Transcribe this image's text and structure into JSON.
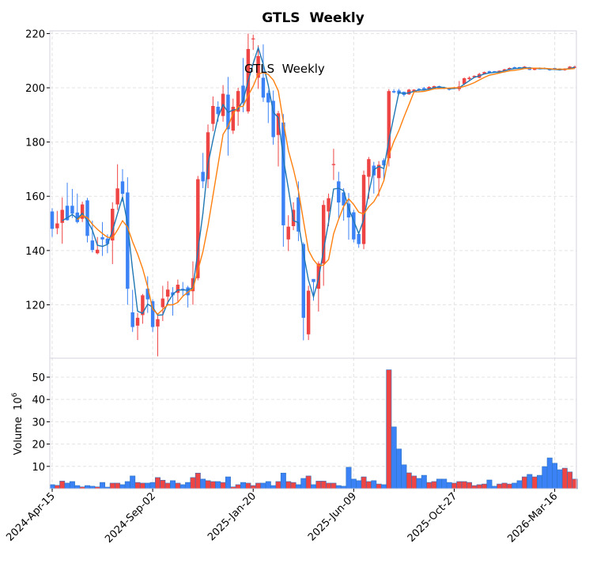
{
  "chart_data": {
    "type": "candlestick",
    "title": "GTLS  Weekly",
    "annotation": "GTLS  Weekly",
    "ylabel_volume": "Volume  10",
    "ylabel_volume_exp": "6",
    "ylim": [
      100.3,
      221
    ],
    "volume_ylim": [
      0,
      58.5
    ],
    "y_ticks": [
      120,
      140,
      160,
      180,
      200,
      220
    ],
    "volume_ticks": [
      10,
      20,
      30,
      40,
      50
    ],
    "x_ticks": [
      {
        "index": 0,
        "label": "2024-Apr-15"
      },
      {
        "index": 20,
        "label": "2024-Sep-02"
      },
      {
        "index": 40,
        "label": "2025-Jan-20"
      },
      {
        "index": 60,
        "label": "2025-Jun-09"
      },
      {
        "index": 80,
        "label": "2025-Oct-27"
      },
      {
        "index": 100,
        "label": "2026-Mar-16"
      }
    ],
    "ma_windows": [
      3,
      6
    ],
    "colors": {
      "up": "#ef4444",
      "down": "#3b82f6",
      "ma_short": "#1f77b4",
      "ma_long": "#ff7f0e",
      "grid": "#e3e3e3",
      "frame": "#d3d3de"
    },
    "ohlc": [
      [
        154.4,
        155.6,
        145,
        148
      ],
      [
        148.2,
        154.6,
        146,
        150
      ],
      [
        150.2,
        159.6,
        142.5,
        155
      ],
      [
        156.5,
        165,
        151,
        151.2
      ],
      [
        156.5,
        162.7,
        152,
        153.6
      ],
      [
        154,
        161,
        150,
        150.5
      ],
      [
        151.7,
        158,
        150.5,
        157
      ],
      [
        158.5,
        159.4,
        143,
        145.4
      ],
      [
        143.7,
        151,
        139.3,
        140.2
      ],
      [
        139,
        145,
        138.6,
        140.3
      ],
      [
        144.9,
        150.5,
        138,
        144.1
      ],
      [
        144.4,
        146,
        139,
        142.4
      ],
      [
        143.7,
        157.8,
        135,
        155.4
      ],
      [
        157,
        171.8,
        155,
        162.9
      ],
      [
        165.5,
        170,
        158,
        160.9
      ],
      [
        161.4,
        167,
        120,
        125.9
      ],
      [
        117.2,
        125.5,
        110,
        111.8
      ],
      [
        112.3,
        117,
        107,
        115.2
      ],
      [
        116.2,
        124,
        113,
        123.5
      ],
      [
        125.9,
        130.5,
        117,
        122
      ],
      [
        121.3,
        122,
        110,
        111.8
      ],
      [
        112,
        116,
        101,
        114.7
      ],
      [
        119.1,
        127,
        114,
        122.3
      ],
      [
        123,
        128.7,
        120,
        125.6
      ],
      [
        124.6,
        126.5,
        116,
        123.5
      ],
      [
        124.4,
        129.3,
        121,
        127.4
      ],
      [
        125.9,
        128.4,
        123,
        125.4
      ],
      [
        126.4,
        127,
        119,
        123.5
      ],
      [
        125,
        136,
        120,
        129.8
      ],
      [
        129.8,
        167.5,
        129,
        166.3
      ],
      [
        169,
        176,
        163,
        165.5
      ],
      [
        166.3,
        186.5,
        163,
        183.6
      ],
      [
        186.7,
        196.8,
        184,
        193.3
      ],
      [
        193,
        195,
        187.5,
        190.3
      ],
      [
        189.6,
        201,
        187.5,
        197.8
      ],
      [
        197.5,
        204,
        175,
        184.7
      ],
      [
        184.2,
        196,
        183,
        193
      ],
      [
        191.2,
        200,
        186,
        198.8
      ],
      [
        200.8,
        211,
        191,
        194.4
      ],
      [
        191.3,
        220,
        190.5,
        214.3
      ],
      [
        218,
        219.6,
        214,
        218.2
      ],
      [
        203.7,
        215.7,
        199.6,
        211.7
      ],
      [
        203.7,
        216,
        194.8,
        196.4
      ],
      [
        198.1,
        199,
        187,
        194.6
      ],
      [
        195.2,
        199,
        179,
        181.8
      ],
      [
        182.6,
        191.5,
        171,
        190.6
      ],
      [
        187.2,
        190.3,
        141.4,
        149.3
      ],
      [
        144.1,
        153,
        139.8,
        148.8
      ],
      [
        149,
        157.8,
        147.5,
        155
      ],
      [
        159.6,
        165.5,
        143.5,
        147
      ],
      [
        142.4,
        143,
        106.9,
        115.2
      ],
      [
        109.1,
        127,
        107,
        125.2
      ],
      [
        129.5,
        129.5,
        121.5,
        128.4
      ],
      [
        125.9,
        136,
        117.5,
        135.2
      ],
      [
        135.2,
        158.5,
        127,
        156.8
      ],
      [
        154.4,
        161,
        149,
        159.3
      ],
      [
        171.5,
        177.5,
        166,
        171.9
      ],
      [
        165.5,
        169,
        152,
        157.7
      ],
      [
        161.4,
        163,
        151,
        156.6
      ],
      [
        157.3,
        161.2,
        144,
        152.2
      ],
      [
        154.1,
        155,
        143,
        144.1
      ],
      [
        146.1,
        147,
        141,
        142.4
      ],
      [
        142.4,
        169.5,
        140.5,
        167.9
      ],
      [
        167.2,
        174.5,
        159,
        173.7
      ],
      [
        171.3,
        172.7,
        161,
        167.7
      ],
      [
        166.7,
        173,
        160,
        171.6
      ],
      [
        173.3,
        174,
        166,
        171.4
      ],
      [
        174,
        199.5,
        171,
        198.8
      ],
      [
        198.8,
        199.5,
        198,
        198.3
      ],
      [
        199,
        199.6,
        197.5,
        197.8
      ],
      [
        198.5,
        198.6,
        196.8,
        197.4
      ],
      [
        197.6,
        199.6,
        197.4,
        199.3
      ],
      [
        198.6,
        199.5,
        198.4,
        199.3
      ],
      [
        199.6,
        199.9,
        198.7,
        199
      ],
      [
        199.9,
        200.3,
        199,
        199.3
      ],
      [
        199.5,
        200.6,
        199.3,
        200.3
      ],
      [
        199.9,
        200.8,
        199.7,
        200.6
      ],
      [
        200.6,
        200.8,
        199.6,
        199.9
      ],
      [
        200.1,
        200.4,
        199.5,
        199.8
      ],
      [
        199.9,
        200.1,
        199,
        199.3
      ],
      [
        199.7,
        200.3,
        199.5,
        200.1
      ],
      [
        199.5,
        202.5,
        198.8,
        200.5
      ],
      [
        201.4,
        203.8,
        201,
        203.5
      ],
      [
        203.2,
        204.2,
        202.8,
        203.7
      ],
      [
        203.9,
        204.6,
        203.6,
        204.4
      ],
      [
        203.7,
        205.5,
        203.5,
        205.1
      ],
      [
        205.1,
        206,
        204.9,
        205.8
      ],
      [
        206.1,
        206.3,
        205.3,
        205.5
      ],
      [
        206.1,
        206.2,
        205.5,
        205.7
      ],
      [
        205.8,
        206.4,
        205.7,
        206.3
      ],
      [
        206.3,
        207,
        206.2,
        206.8
      ],
      [
        206.7,
        207.5,
        206.5,
        207.3
      ],
      [
        207.6,
        207.8,
        207,
        207.1
      ],
      [
        207.6,
        207.7,
        207.2,
        207.3
      ],
      [
        207.4,
        208,
        207.3,
        207.8
      ],
      [
        207.6,
        207.7,
        206.5,
        206.6
      ],
      [
        206.6,
        207.4,
        206.5,
        207.3
      ],
      [
        207.4,
        207.5,
        207,
        207.1
      ],
      [
        207.3,
        207.5,
        206.8,
        206.9
      ],
      [
        207.1,
        207.2,
        206.3,
        206.5
      ],
      [
        207.3,
        207.4,
        206.8,
        206.9
      ],
      [
        207.1,
        207.2,
        206.3,
        206.5
      ],
      [
        206.5,
        207.2,
        206.3,
        207.1
      ],
      [
        206.9,
        208,
        206.8,
        207.8
      ],
      [
        207.3,
        208.2,
        207.2,
        207.8
      ]
    ],
    "volume": [
      1.8,
      1.5,
      3.4,
      2.5,
      3.2,
      1.4,
      0.8,
      1.4,
      1.1,
      0.8,
      2.8,
      0.7,
      2.5,
      2.5,
      1.8,
      3.2,
      5.7,
      2.8,
      2.5,
      2.5,
      2.8,
      5.0,
      3.8,
      2.5,
      3.6,
      2.5,
      1.8,
      2.8,
      5.0,
      7.0,
      4.3,
      3.6,
      3.2,
      3.2,
      2.8,
      5.3,
      0.8,
      1.8,
      2.8,
      2.5,
      1.4,
      2.5,
      2.5,
      3.2,
      1.4,
      3.2,
      7.0,
      3.2,
      2.8,
      1.8,
      4.6,
      5.7,
      1.8,
      3.4,
      3.4,
      2.5,
      2.5,
      1.4,
      1.1,
      9.6,
      4.3,
      3.6,
      5.3,
      3.2,
      3.6,
      2.1,
      1.8,
      53.3,
      27.7,
      17.8,
      10.7,
      7.1,
      5.7,
      4.6,
      6.0,
      2.8,
      3.2,
      4.3,
      4.3,
      2.8,
      2.5,
      3.2,
      3.2,
      2.8,
      1.4,
      1.8,
      2.1,
      3.9,
      1.1,
      2.1,
      2.5,
      2.1,
      2.5,
      3.6,
      5.3,
      6.4,
      5.3,
      6.0,
      9.9,
      13.8,
      11.4,
      8.5,
      9.2,
      7.5,
      4.3
    ]
  }
}
